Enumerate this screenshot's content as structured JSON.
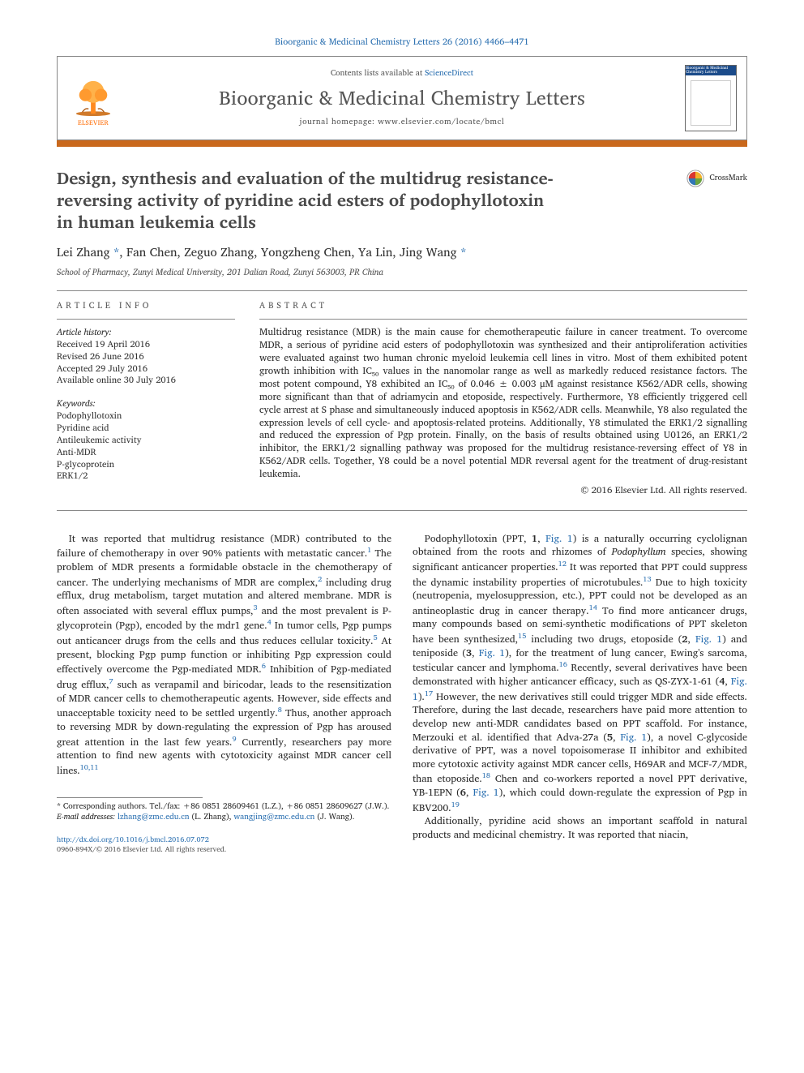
{
  "citation": "Bioorganic & Medicinal Chemistry Letters 26 (2016) 4466–4471",
  "masthead": {
    "contents_prefix": "Contents lists available at ",
    "contents_link": "ScienceDirect",
    "journal_name": "Bioorganic & Medicinal Chemistry Letters",
    "homepage_prefix": "journal homepage: ",
    "homepage_url": "www.elsevier.com/locate/bmcl",
    "publisher": "ELSEVIER",
    "cover_label": "Bioorganic & Medicinal Chemistry Letters"
  },
  "colors": {
    "link": "#2a6fb0",
    "accent_bar": "#c9681c",
    "publisher_orange": "#ff6a00",
    "crossmark_red": "#d9362f",
    "crossmark_yellow": "#f3b22a",
    "crossmark_blue": "#3176b6",
    "crossmark_green": "#6aa43f"
  },
  "crossmark_label": "CrossMark",
  "title": "Design, synthesis and evaluation of the multidrug resistance-reversing activity of pyridine acid esters of podophyllotoxin in human leukemia cells",
  "authors_html": "Lei Zhang <a href='#'>*</a>, Fan Chen, Zeguo Zhang, Yongzheng Chen, Ya Lin, Jing Wang <a href='#'>*</a>",
  "affiliation": "School of Pharmacy, Zunyi Medical University, 201 Dalian Road, Zunyi 563003, PR China",
  "info_head": "ARTICLE INFO",
  "abs_head": "ABSTRACT",
  "history": {
    "label": "Article history:",
    "received": "Received 19 April 2016",
    "revised": "Revised 26 June 2016",
    "accepted": "Accepted 29 July 2016",
    "online": "Available online 30 July 2016"
  },
  "keywords": {
    "label": "Keywords:",
    "items": [
      "Podophyllotoxin",
      "Pyridine acid",
      "Antileukemic activity",
      "Anti-MDR",
      "P-glycoprotein",
      "ERK1/2"
    ]
  },
  "abstract": "Multidrug resistance (MDR) is the main cause for chemotherapeutic failure in cancer treatment. To overcome MDR, a serious of pyridine acid esters of podophyllotoxin was synthesized and their antiproliferation activities were evaluated against two human chronic myeloid leukemia cell lines in vitro. Most of them exhibited potent growth inhibition with IC₅₀ values in the nanomolar range as well as markedly reduced resistance factors. The most potent compound, Y8 exhibited an IC₅₀ of 0.046 ± 0.003 μM against resistance K562/ADR cells, showing more significant than that of adriamycin and etoposide, respectively. Furthermore, Y8 efficiently triggered cell cycle arrest at S phase and simultaneously induced apoptosis in K562/ADR cells. Meanwhile, Y8 also regulated the expression levels of cell cycle- and apoptosis-related proteins. Additionally, Y8 stimulated the ERK1/2 signalling and reduced the expression of Pgp protein. Finally, on the basis of results obtained using U0126, an ERK1/2 inhibitor, the ERK1/2 signalling pathway was proposed for the multidrug resistance-reversing effect of Y8 in K562/ADR cells. Together, Y8 could be a novel potential MDR reversal agent for the treatment of drug-resistant leukemia.",
  "abstract_copyright": "© 2016 Elsevier Ltd. All rights reserved.",
  "body": {
    "left": "It was reported that multidrug resistance (MDR) contributed to the failure of chemotherapy in over 90% patients with metastatic cancer.<sup>1</sup> The problem of MDR presents a formidable obstacle in the chemotherapy of cancer. The underlying mechanisms of MDR are complex,<sup>2</sup> including drug efflux, drug metabolism, target mutation and altered membrane. MDR is often associated with several efflux pumps,<sup>3</sup> and the most prevalent is P-glycoprotein (Pgp), encoded by the mdr1 gene.<sup>4</sup> In tumor cells, Pgp pumps out anticancer drugs from the cells and thus reduces cellular toxicity.<sup>5</sup> At present, blocking Pgp pump function or inhibiting Pgp expression could effectively overcome the Pgp-mediated MDR.<sup>6</sup> Inhibition of Pgp-mediated drug efflux,<sup>7</sup> such as verapamil and biricodar, leads to the resensitization of MDR cancer cells to chemotherapeutic agents. However, side effects and unacceptable toxicity need to be settled urgently.<sup>8</sup> Thus, another approach to reversing MDR by down-regulating the expression of Pgp has aroused great attention in the last few years.<sup>9</sup> Currently, researchers pay more attention to find new agents with cytotoxicity against MDR cancer cell lines.<sup>10,11</sup>",
    "right_p1": "Podophyllotoxin (PPT, <b>1</b>, <a href='#'>Fig. 1</a>) is a naturally occurring cyclolignan obtained from the roots and rhizomes of <span class='ital'>Podophyllum</span> species, showing significant anticancer properties.<sup>12</sup> It was reported that PPT could suppress the dynamic instability properties of microtubules.<sup>13</sup> Due to high toxicity (neutropenia, myelosuppression, etc.), PPT could not be developed as an antineoplastic drug in cancer therapy.<sup>14</sup> To find more anticancer drugs, many compounds based on semi-synthetic modifications of PPT skeleton have been synthesized,<sup>15</sup> including two drugs, etoposide (<b>2</b>, <a href='#'>Fig. 1</a>) and teniposide (<b>3</b>, <a href='#'>Fig. 1</a>), for the treatment of lung cancer, Ewing's sarcoma, testicular cancer and lymphoma.<sup>16</sup> Recently, several derivatives have been demonstrated with higher anticancer efficacy, such as QS-ZYX-1-61 (<b>4</b>, <a href='#'>Fig. 1</a>).<sup>17</sup> However, the new derivatives still could trigger MDR and side effects. Therefore, during the last decade, researchers have paid more attention to develop new anti-MDR candidates based on PPT scaffold. For instance, Merzouki et al. identified that Adva-27a (<b>5</b>, <a href='#'>Fig. 1</a>), a novel C-glycoside derivative of PPT, was a novel topoisomerase II inhibitor and exhibited more cytotoxic activity against MDR cancer cells, H69AR and MCF-7/MDR, than etoposide.<sup>18</sup> Chen and co-workers reported a novel PPT derivative, YB-1EPN (<b>6</b>, <a href='#'>Fig. 1</a>), which could down-regulate the expression of Pgp in KBV200.<sup>19</sup>",
    "right_p2": "Additionally, pyridine acid shows an important scaffold in natural products and medicinal chemistry. It was reported that niacin,"
  },
  "footnotes": {
    "corr": "* Corresponding authors. Tel./fax: +86 0851 28609461 (L.Z.), +86 0851 28609627 (J.W.).",
    "emails_label": "E-mail addresses:",
    "email1": "lzhang@zmc.edu.cn",
    "email1_who": "(L. Zhang),",
    "email2": "wangjing@zmc.edu.cn",
    "email2_who": "(J. Wang)."
  },
  "page_foot": {
    "doi": "http://dx.doi.org/10.1016/j.bmcl.2016.07.072",
    "issn_copy": "0960-894X/© 2016 Elsevier Ltd. All rights reserved."
  }
}
